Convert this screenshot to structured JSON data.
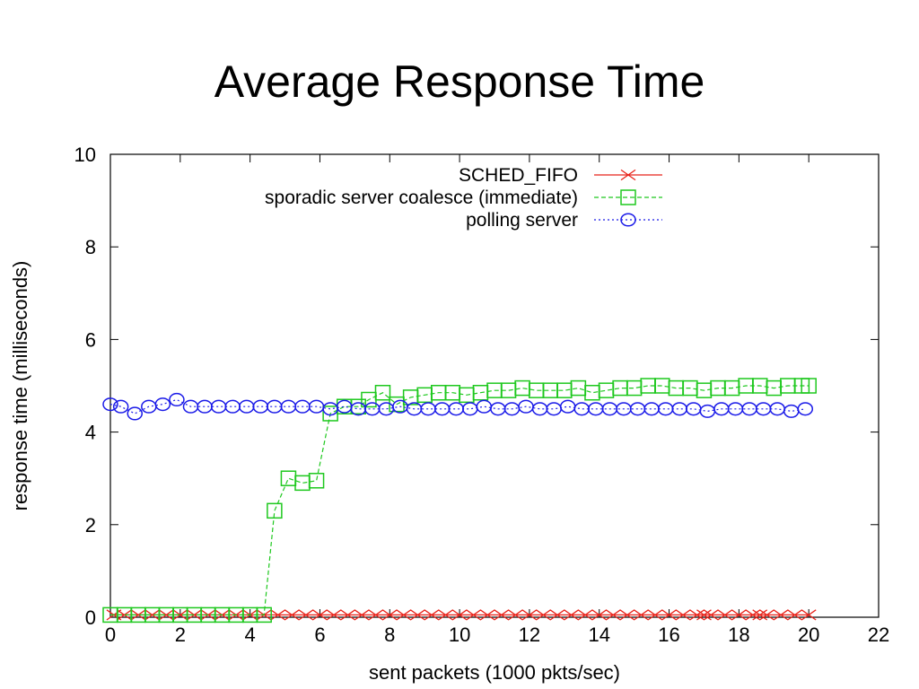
{
  "slide": {
    "title": "Average Response Time"
  },
  "chart_data": {
    "type": "line",
    "title": "",
    "xlabel": "sent packets (1000 pkts/sec)",
    "ylabel": "response time (milliseconds)",
    "xlim": [
      0,
      22
    ],
    "ylim": [
      0,
      10
    ],
    "xticks": [
      0,
      2,
      4,
      6,
      8,
      10,
      12,
      14,
      16,
      18,
      20,
      22
    ],
    "yticks": [
      0,
      2,
      4,
      6,
      8,
      10
    ],
    "grid": false,
    "legend_position": "top-right",
    "series": [
      {
        "name": "SCHED_FIFO",
        "color": "#e8231a",
        "marker": "x",
        "dash": "solid",
        "x": [
          0.1,
          0.4,
          0.8,
          1.2,
          1.6,
          2.0,
          2.4,
          2.8,
          3.2,
          3.6,
          4.0,
          4.4,
          4.8,
          5.2,
          5.6,
          6.0,
          6.4,
          6.8,
          7.2,
          7.6,
          8.0,
          8.4,
          8.8,
          9.2,
          9.6,
          10.0,
          10.4,
          10.8,
          11.2,
          11.6,
          12.0,
          12.4,
          12.8,
          13.2,
          13.6,
          14.0,
          14.4,
          14.8,
          15.2,
          15.6,
          16.0,
          16.4,
          16.8,
          17.0,
          17.2,
          17.6,
          18.0,
          18.4,
          18.6,
          18.8,
          19.2,
          19.6,
          20.0
        ],
        "y": [
          0.05,
          0.05,
          0.05,
          0.05,
          0.05,
          0.05,
          0.05,
          0.05,
          0.05,
          0.05,
          0.05,
          0.05,
          0.05,
          0.05,
          0.05,
          0.05,
          0.05,
          0.05,
          0.05,
          0.05,
          0.05,
          0.05,
          0.05,
          0.05,
          0.05,
          0.05,
          0.05,
          0.05,
          0.05,
          0.05,
          0.05,
          0.05,
          0.05,
          0.05,
          0.05,
          0.05,
          0.05,
          0.05,
          0.05,
          0.05,
          0.05,
          0.05,
          0.05,
          0.05,
          0.05,
          0.05,
          0.05,
          0.05,
          0.05,
          0.05,
          0.05,
          0.05,
          0.05
        ]
      },
      {
        "name": "sporadic server coalesce (immediate)",
        "color": "#1ec81e",
        "marker": "square",
        "dash": "dashed",
        "x": [
          0.0,
          0.4,
          0.8,
          1.2,
          1.6,
          2.0,
          2.4,
          2.8,
          3.2,
          3.6,
          4.0,
          4.4,
          4.7,
          5.1,
          5.5,
          5.9,
          6.3,
          6.7,
          7.1,
          7.4,
          7.8,
          8.2,
          8.6,
          9.0,
          9.4,
          9.8,
          10.2,
          10.6,
          11.0,
          11.4,
          11.8,
          12.2,
          12.6,
          13.0,
          13.4,
          13.8,
          14.2,
          14.6,
          15.0,
          15.4,
          15.8,
          16.2,
          16.6,
          17.0,
          17.4,
          17.8,
          18.2,
          18.6,
          19.0,
          19.4,
          19.8,
          20.0
        ],
        "y": [
          0.05,
          0.05,
          0.05,
          0.05,
          0.05,
          0.05,
          0.05,
          0.05,
          0.05,
          0.05,
          0.05,
          0.05,
          2.3,
          3.0,
          2.9,
          2.95,
          4.4,
          4.55,
          4.55,
          4.7,
          4.85,
          4.6,
          4.75,
          4.8,
          4.85,
          4.85,
          4.8,
          4.85,
          4.9,
          4.9,
          4.95,
          4.9,
          4.9,
          4.9,
          4.95,
          4.85,
          4.9,
          4.95,
          4.95,
          5.0,
          5.0,
          4.95,
          4.95,
          4.9,
          4.95,
          4.95,
          5.0,
          5.0,
          4.95,
          5.0,
          5.0,
          5.0
        ]
      },
      {
        "name": "polling server",
        "color": "#1a1ae8",
        "marker": "circle",
        "dash": "dotted",
        "x": [
          0.0,
          0.3,
          0.7,
          1.1,
          1.5,
          1.9,
          2.3,
          2.7,
          3.1,
          3.5,
          3.9,
          4.3,
          4.7,
          5.1,
          5.5,
          5.9,
          6.3,
          6.7,
          7.1,
          7.5,
          7.9,
          8.3,
          8.7,
          9.1,
          9.5,
          9.9,
          10.3,
          10.7,
          11.1,
          11.5,
          11.9,
          12.3,
          12.7,
          13.1,
          13.5,
          13.9,
          14.3,
          14.7,
          15.1,
          15.5,
          15.9,
          16.3,
          16.7,
          17.1,
          17.5,
          17.9,
          18.3,
          18.7,
          19.1,
          19.5,
          19.9
        ],
        "y": [
          4.6,
          4.55,
          4.4,
          4.55,
          4.6,
          4.7,
          4.55,
          4.55,
          4.55,
          4.55,
          4.55,
          4.55,
          4.55,
          4.55,
          4.55,
          4.55,
          4.5,
          4.55,
          4.5,
          4.5,
          4.5,
          4.55,
          4.5,
          4.5,
          4.5,
          4.5,
          4.5,
          4.55,
          4.5,
          4.5,
          4.55,
          4.5,
          4.5,
          4.55,
          4.5,
          4.5,
          4.5,
          4.5,
          4.5,
          4.5,
          4.5,
          4.5,
          4.5,
          4.45,
          4.5,
          4.5,
          4.5,
          4.5,
          4.5,
          4.45,
          4.5
        ]
      }
    ]
  }
}
